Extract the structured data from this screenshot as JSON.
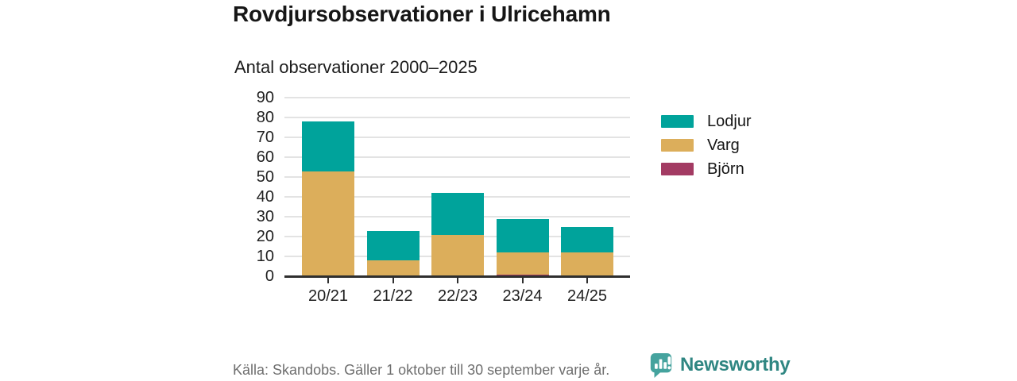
{
  "header": {
    "title": "Rovdjursobservationer i Ulricehamn",
    "subtitle": "Antal observationer 2000–2025"
  },
  "chart_data": {
    "type": "bar",
    "stacked": true,
    "title": "Rovdjursobservationer i Ulricehamn",
    "subtitle": "Antal observationer 2000–2025",
    "categories": [
      "20/21",
      "21/22",
      "22/23",
      "23/24",
      "24/25"
    ],
    "series": [
      {
        "name": "Lodjur",
        "color": "#00a39b",
        "values": [
          25,
          15,
          21,
          17,
          13
        ]
      },
      {
        "name": "Varg",
        "color": "#dcae5b",
        "values": [
          53,
          8,
          21,
          11,
          12
        ]
      },
      {
        "name": "Björn",
        "color": "#a33b63",
        "values": [
          0,
          0,
          0,
          1,
          0
        ]
      }
    ],
    "totals": [
      78,
      23,
      42,
      29,
      25
    ],
    "xlabel": "",
    "ylabel": "",
    "ylim": [
      0,
      90
    ],
    "yticks": [
      0,
      10,
      20,
      30,
      40,
      50,
      60,
      70,
      80,
      90
    ],
    "grid": true,
    "legend_position": "right"
  },
  "footer": {
    "source": "Källa: Skandobs. Gäller 1 oktober till 30 september varje år.",
    "brand": "Newsworthy"
  },
  "colors": {
    "lodjur_teal": "#00a39b",
    "varg_gold": "#dcae5b",
    "bjorn_maroon": "#a33b63",
    "brand_teal": "#2f8682",
    "logo_teal": "#45a39e",
    "grid": "#e3e3e3",
    "axis": "#2f2f2f",
    "muted_text": "#6e6e6e"
  }
}
